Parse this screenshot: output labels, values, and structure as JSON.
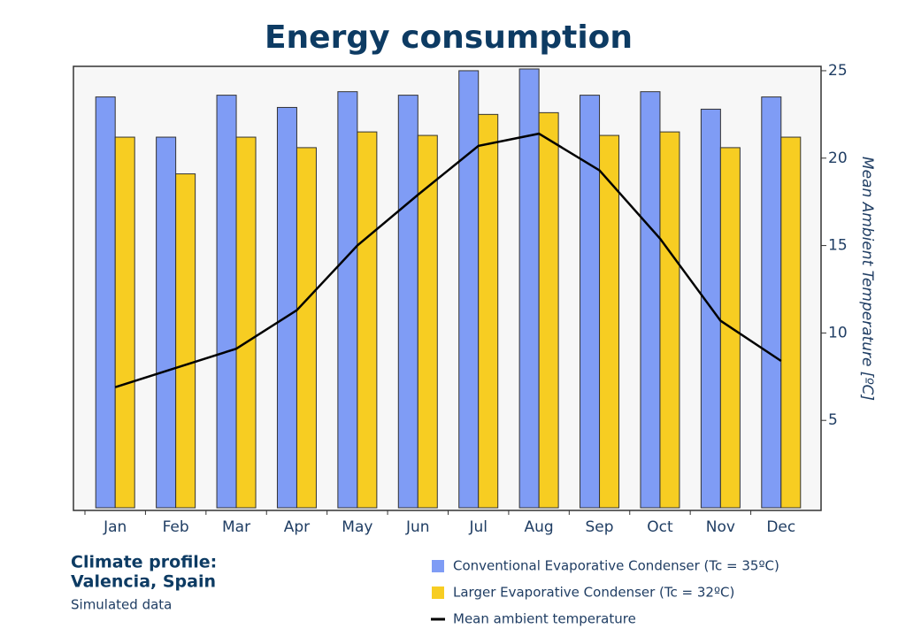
{
  "chart_data": {
    "type": "bar-line",
    "title": "Energy consumption",
    "categories": [
      "Jan",
      "Feb",
      "Mar",
      "Apr",
      "May",
      "Jun",
      "Jul",
      "Aug",
      "Sep",
      "Oct",
      "Nov",
      "Dec"
    ],
    "series": [
      {
        "name": "Conventional Evaporative Condenser (Tc = 35ºC)",
        "color": "#7f9cf5",
        "type": "bar",
        "values": [
          23.5,
          21.2,
          23.6,
          22.9,
          23.8,
          23.6,
          25.0,
          25.1,
          23.6,
          23.8,
          22.8,
          23.5
        ]
      },
      {
        "name": "Larger Evaporative Condenser (Tc = 32ºC)",
        "color": "#f7cd22",
        "type": "bar",
        "values": [
          21.2,
          19.1,
          21.2,
          20.6,
          21.5,
          21.3,
          22.5,
          22.6,
          21.3,
          21.5,
          20.6,
          21.2
        ]
      },
      {
        "name": "Mean ambient temperature",
        "color": "#000000",
        "type": "line",
        "axis": "y2",
        "values": [
          6.9,
          8.0,
          9.1,
          11.3,
          15.0,
          17.9,
          20.7,
          21.4,
          19.3,
          15.4,
          10.7,
          8.4
        ]
      }
    ],
    "ylim": [
      -0.15,
      25.25
    ],
    "y2lim": [
      -0.15,
      25.25
    ],
    "y2ticks": [
      5,
      10,
      15,
      20,
      25
    ],
    "y2label": "Mean Ambient Temperature [ºC]",
    "annotations": [
      "Climate profile:",
      "Valencia, Spain",
      "Simulated data"
    ],
    "legend": "bottom-right"
  }
}
